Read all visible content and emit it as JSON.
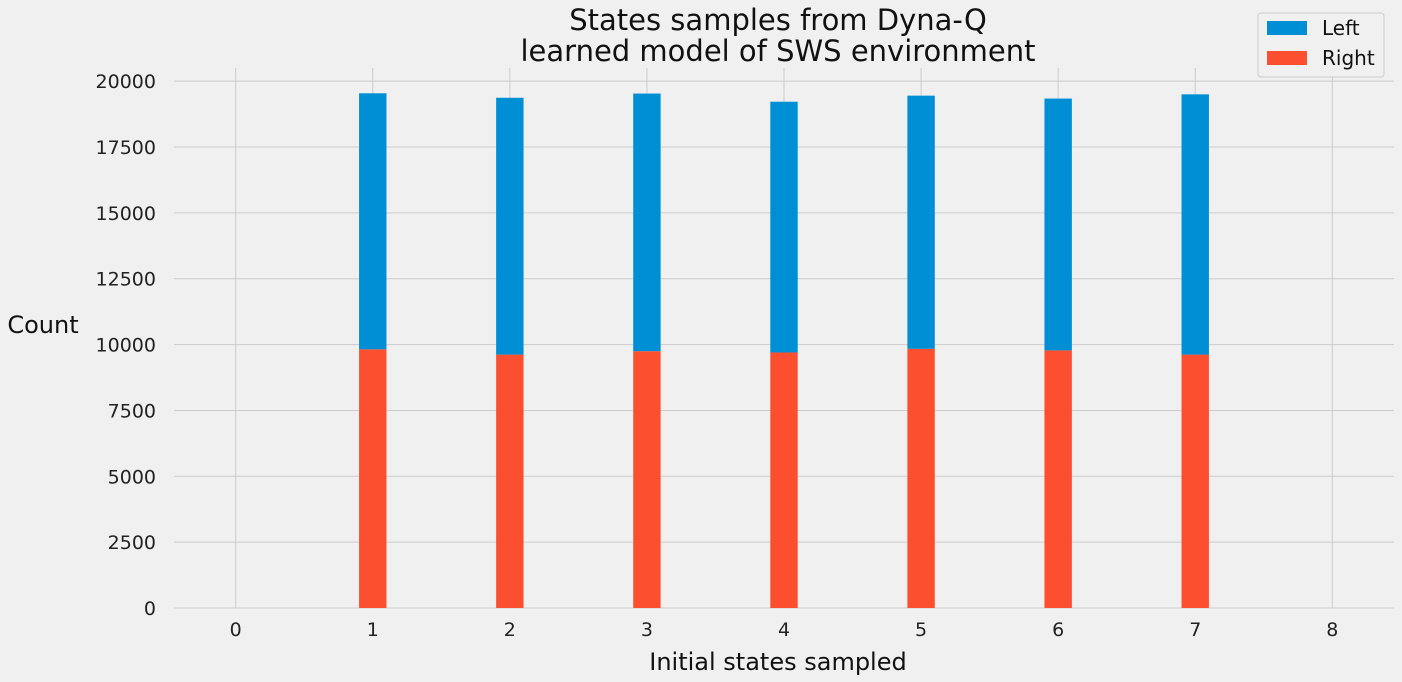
{
  "chart_data": {
    "type": "bar",
    "stacked": true,
    "title": [
      "States samples from Dyna-Q",
      "learned model of SWS environment"
    ],
    "xlabel": "Initial states sampled",
    "ylabel": "Count",
    "xlim": [
      -0.45,
      8.45
    ],
    "ylim": [
      0,
      20500
    ],
    "xticks": [
      0,
      1,
      2,
      3,
      4,
      5,
      6,
      7,
      8
    ],
    "yticks": [
      0,
      2500,
      5000,
      7500,
      10000,
      12500,
      15000,
      17500,
      20000
    ],
    "bar_width": 0.2,
    "grid": true,
    "legend_position": "top-right",
    "x": [
      1,
      2,
      3,
      4,
      5,
      6,
      7
    ],
    "series": [
      {
        "name": "Right",
        "color": "#fc4f30",
        "values": [
          9820,
          9620,
          9750,
          9700,
          9840,
          9780,
          9620
        ]
      },
      {
        "name": "Left",
        "color": "#008fd5",
        "values": [
          9720,
          9750,
          9780,
          9520,
          9610,
          9560,
          9880
        ]
      }
    ],
    "legend_order": [
      "Left",
      "Right"
    ]
  }
}
